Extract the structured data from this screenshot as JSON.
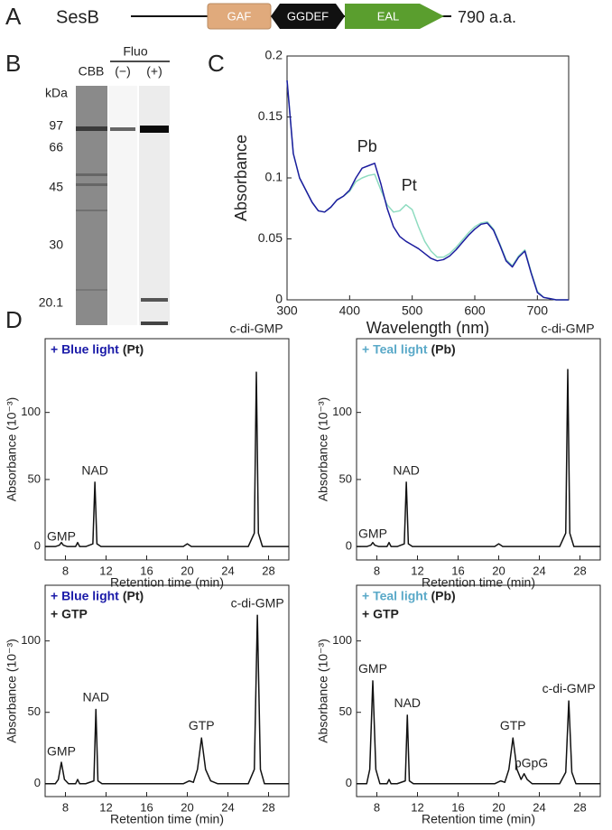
{
  "panel_labels": [
    "A",
    "B",
    "C",
    "D"
  ],
  "domain_diagram": {
    "protein": "SesB",
    "domains": [
      "GAF",
      "GGDEF",
      "EAL"
    ],
    "length": "790 a.a."
  },
  "gel": {
    "unit": "kDa",
    "group": "Fluo",
    "lanes": [
      "CBB",
      "(−)",
      "(+)"
    ],
    "markers": [
      "97",
      "66",
      "45",
      "30",
      "20.1"
    ]
  },
  "chart_data": [
    {
      "type": "line",
      "xlabel": "Wavelength (nm)",
      "ylabel": "Absorbance",
      "x": [
        300,
        310,
        320,
        330,
        340,
        350,
        360,
        370,
        380,
        390,
        400,
        410,
        420,
        430,
        440,
        450,
        460,
        470,
        480,
        490,
        500,
        510,
        520,
        530,
        540,
        550,
        560,
        570,
        580,
        590,
        600,
        610,
        620,
        630,
        640,
        650,
        660,
        670,
        680,
        690,
        700,
        710,
        720,
        730,
        740,
        750
      ],
      "series": [
        {
          "color": "#8fdcc0",
          "values": [
            0.18,
            0.12,
            0.1,
            0.09,
            0.08,
            0.073,
            0.072,
            0.076,
            0.082,
            0.085,
            0.089,
            0.097,
            0.1,
            0.102,
            0.103,
            0.09,
            0.078,
            0.072,
            0.073,
            0.078,
            0.074,
            0.06,
            0.048,
            0.04,
            0.035,
            0.035,
            0.038,
            0.043,
            0.049,
            0.055,
            0.06,
            0.063,
            0.064,
            0.058,
            0.046,
            0.033,
            0.028,
            0.036,
            0.041,
            0.023,
            0.007,
            0.002,
            0.001,
            0,
            0,
            0
          ]
        },
        {
          "color": "#1c1c9e",
          "values": [
            0.18,
            0.12,
            0.1,
            0.09,
            0.08,
            0.073,
            0.072,
            0.076,
            0.082,
            0.085,
            0.09,
            0.1,
            0.108,
            0.11,
            0.112,
            0.095,
            0.075,
            0.06,
            0.052,
            0.048,
            0.045,
            0.042,
            0.038,
            0.034,
            0.032,
            0.033,
            0.036,
            0.041,
            0.047,
            0.053,
            0.058,
            0.062,
            0.063,
            0.057,
            0.045,
            0.032,
            0.027,
            0.035,
            0.04,
            0.022,
            0.006,
            0.002,
            0.001,
            0,
            0,
            0
          ]
        }
      ],
      "xlim": [
        300,
        750
      ],
      "xticks": [
        300,
        400,
        500,
        600,
        700
      ],
      "ylim": [
        0,
        0.2
      ],
      "yticks": [
        0,
        0.05,
        0.1,
        0.15,
        0.2
      ],
      "annotations": [
        {
          "text": "Pb",
          "x": 428,
          "y": 0.125
        },
        {
          "text": "Pt",
          "x": 495,
          "y": 0.093
        }
      ]
    },
    {
      "type": "line",
      "title": "+ Blue light",
      "title_color": "#1a1aa8",
      "title_suffix": "(Pt)",
      "xlabel": "Retention time (min)",
      "ylabel": "Absorbance (10⁻³)",
      "color": "#111111",
      "x": [
        6,
        7,
        7.4,
        7.6,
        7.8,
        8.2,
        9,
        9.2,
        9.4,
        10,
        10.7,
        10.9,
        11.1,
        11.5,
        19.6,
        20,
        20.4,
        26,
        26.6,
        26.8,
        27,
        27.4,
        30
      ],
      "values": [
        0,
        0,
        1,
        3,
        1,
        0,
        0,
        3,
        0,
        0,
        2,
        48,
        2,
        0,
        0,
        2,
        0,
        0,
        10,
        130,
        10,
        0,
        0
      ],
      "xlim": [
        6,
        30
      ],
      "xticks": [
        8,
        12,
        16,
        20,
        24,
        28
      ],
      "ylim": [
        -10,
        155
      ],
      "yticks": [
        0,
        50,
        100
      ],
      "annotations": [
        {
          "text": "GMP",
          "x": 7.6,
          "y": 7
        },
        {
          "text": "NAD",
          "x": 10.9,
          "y": 56
        },
        {
          "text": "c-di-GMP",
          "x": 26.8,
          "y": 162
        }
      ]
    },
    {
      "type": "line",
      "title": "+ Teal light",
      "title_color": "#5aa9c8",
      "title_suffix": "(Pb)",
      "xlabel": "Retention time (min)",
      "ylabel": "Absorbance (10⁻³)",
      "color": "#111111",
      "x": [
        6,
        7,
        7.4,
        7.6,
        7.8,
        8.2,
        9,
        9.2,
        9.4,
        10,
        10.7,
        10.9,
        11.1,
        11.5,
        19.6,
        20,
        20.4,
        26,
        26.6,
        26.8,
        27,
        27.4,
        30
      ],
      "values": [
        0,
        0,
        1,
        3,
        1,
        0,
        0,
        3,
        0,
        0,
        2,
        48,
        2,
        0,
        0,
        2,
        0,
        0,
        10,
        132,
        10,
        0,
        0
      ],
      "xlim": [
        6,
        30
      ],
      "xticks": [
        8,
        12,
        16,
        20,
        24,
        28
      ],
      "ylim": [
        -10,
        155
      ],
      "yticks": [
        0,
        50,
        100
      ],
      "annotations": [
        {
          "text": "GMP",
          "x": 7.6,
          "y": 9
        },
        {
          "text": "NAD",
          "x": 10.9,
          "y": 56
        },
        {
          "text": "c-di-GMP",
          "x": 26.8,
          "y": 162
        }
      ]
    },
    {
      "type": "line",
      "title": "+ Blue light",
      "title_color": "#1a1aa8",
      "title_suffix": "(Pt)",
      "subtitle": "+ GTP",
      "xlabel": "Retention time (min)",
      "ylabel": "Absorbance (10⁻³)",
      "color": "#111111",
      "x": [
        6,
        7,
        7.3,
        7.6,
        7.9,
        8.3,
        9,
        9.2,
        9.4,
        10,
        10.8,
        11,
        11.2,
        11.6,
        19.6,
        20.2,
        20.6,
        21,
        21.4,
        21.8,
        22.3,
        23,
        26,
        26.6,
        26.9,
        27.2,
        27.6,
        30
      ],
      "values": [
        0,
        0,
        3,
        15,
        3,
        0,
        0,
        3,
        0,
        0,
        2,
        52,
        2,
        0,
        0,
        2,
        1,
        10,
        32,
        10,
        2,
        0,
        0,
        10,
        118,
        10,
        0,
        0
      ],
      "xlim": [
        6,
        30
      ],
      "xticks": [
        8,
        12,
        16,
        20,
        24,
        28
      ],
      "ylim": [
        -9,
        139
      ],
      "yticks": [
        0,
        50,
        100
      ],
      "annotations": [
        {
          "text": "GMP",
          "x": 7.6,
          "y": 22
        },
        {
          "text": "NAD",
          "x": 11,
          "y": 60
        },
        {
          "text": "GTP",
          "x": 21.4,
          "y": 40
        },
        {
          "text": "c-di-GMP",
          "x": 26.9,
          "y": 126
        }
      ]
    },
    {
      "type": "line",
      "title": "+ Teal light",
      "title_color": "#5aa9c8",
      "title_suffix": "(Pb)",
      "subtitle": "+ GTP",
      "xlabel": "Retention time (min)",
      "ylabel": "Absorbance (10⁻³)",
      "color": "#111111",
      "x": [
        6,
        7,
        7.3,
        7.6,
        7.9,
        8.3,
        9,
        9.2,
        9.4,
        10,
        10.8,
        11,
        11.2,
        11.6,
        19.6,
        20.2,
        20.6,
        21,
        21.4,
        21.8,
        22.2,
        22.5,
        22.8,
        23.3,
        26,
        26.6,
        26.9,
        27.2,
        27.6,
        30
      ],
      "values": [
        0,
        0,
        10,
        72,
        10,
        0,
        0,
        3,
        0,
        0,
        2,
        48,
        2,
        0,
        0,
        2,
        1,
        10,
        32,
        10,
        3,
        7,
        3,
        0,
        0,
        8,
        58,
        8,
        0,
        0
      ],
      "xlim": [
        6,
        30
      ],
      "xticks": [
        8,
        12,
        16,
        20,
        24,
        28
      ],
      "ylim": [
        -9,
        139
      ],
      "yticks": [
        0,
        50,
        100
      ],
      "annotations": [
        {
          "text": "GMP",
          "x": 7.6,
          "y": 80
        },
        {
          "text": "NAD",
          "x": 11,
          "y": 56
        },
        {
          "text": "GTP",
          "x": 21.4,
          "y": 40
        },
        {
          "text": "pGpG",
          "x": 23.2,
          "y": 14
        },
        {
          "text": "c-di-GMP",
          "x": 26.9,
          "y": 66
        }
      ]
    }
  ]
}
